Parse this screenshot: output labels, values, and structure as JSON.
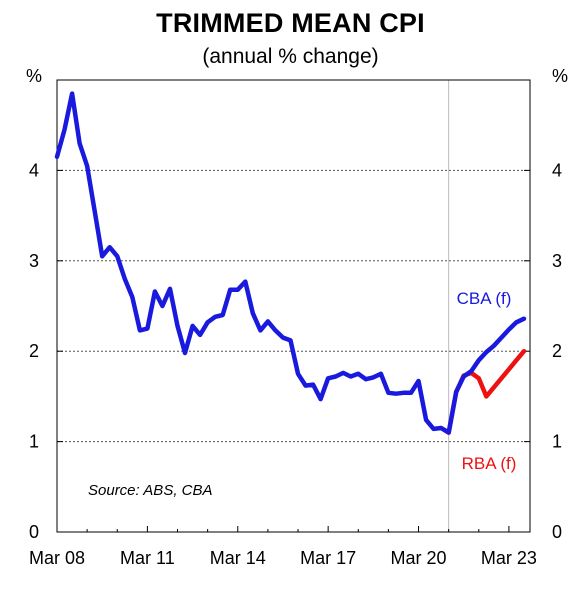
{
  "chart_data": {
    "type": "line",
    "title": "TRIMMED MEAN CPI",
    "subtitle": "(annual % change)",
    "y_unit_left": "%",
    "y_unit_right": "%",
    "ylim": [
      0,
      5
    ],
    "yticks": [
      "0",
      "1",
      "2",
      "3",
      "4"
    ],
    "xticks": [
      "Mar 08",
      "Mar 11",
      "Mar 14",
      "Mar 17",
      "Mar 20",
      "Mar 23"
    ],
    "grid": "horizontal dotted",
    "forecast_divider_x": 2021.0,
    "source": "Source: ABS, CBA",
    "colors": {
      "cba": "#1a1adf",
      "rba": "#ee1111",
      "divider": "#bbbbbb"
    },
    "series": [
      {
        "name": "CBA (f)",
        "color": "#1a1adf",
        "x": [
          2008.0,
          2008.25,
          2008.5,
          2008.75,
          2009.0,
          2009.25,
          2009.5,
          2009.75,
          2010.0,
          2010.25,
          2010.5,
          2010.75,
          2011.0,
          2011.25,
          2011.5,
          2011.75,
          2012.0,
          2012.25,
          2012.5,
          2012.75,
          2013.0,
          2013.25,
          2013.5,
          2013.75,
          2014.0,
          2014.25,
          2014.5,
          2014.75,
          2015.0,
          2015.25,
          2015.5,
          2015.75,
          2016.0,
          2016.25,
          2016.5,
          2016.75,
          2017.0,
          2017.25,
          2017.5,
          2017.75,
          2018.0,
          2018.25,
          2018.5,
          2018.75,
          2019.0,
          2019.25,
          2019.5,
          2019.75,
          2020.0,
          2020.25,
          2020.5,
          2020.75,
          2021.0,
          2021.25,
          2021.5,
          2021.75,
          2022.0,
          2022.25,
          2022.5,
          2022.75,
          2023.0,
          2023.25,
          2023.5
        ],
        "values": [
          4.15,
          4.45,
          4.85,
          4.3,
          4.05,
          3.55,
          3.05,
          3.15,
          3.05,
          2.8,
          2.6,
          2.23,
          2.25,
          2.66,
          2.5,
          2.69,
          2.28,
          1.98,
          2.28,
          2.18,
          2.32,
          2.38,
          2.4,
          2.68,
          2.68,
          2.77,
          2.42,
          2.23,
          2.33,
          2.23,
          2.15,
          2.12,
          1.75,
          1.62,
          1.63,
          1.47,
          1.7,
          1.72,
          1.76,
          1.72,
          1.75,
          1.69,
          1.71,
          1.75,
          1.54,
          1.53,
          1.54,
          1.54,
          1.67,
          1.24,
          1.14,
          1.15,
          1.1,
          1.55,
          1.72,
          1.78,
          1.9,
          1.99,
          2.06,
          2.15,
          2.24,
          2.32,
          2.36
        ]
      },
      {
        "name": "RBA (f)",
        "color": "#ee1111",
        "x": [
          2020.75,
          2021.0,
          2021.25,
          2021.5,
          2021.75,
          2022.0,
          2022.25,
          2022.5,
          2022.75,
          2023.0,
          2023.25,
          2023.5
        ],
        "values": [
          1.15,
          1.1,
          1.55,
          1.73,
          1.76,
          1.7,
          1.5,
          1.6,
          1.7,
          1.8,
          1.9,
          2.0
        ]
      }
    ]
  }
}
